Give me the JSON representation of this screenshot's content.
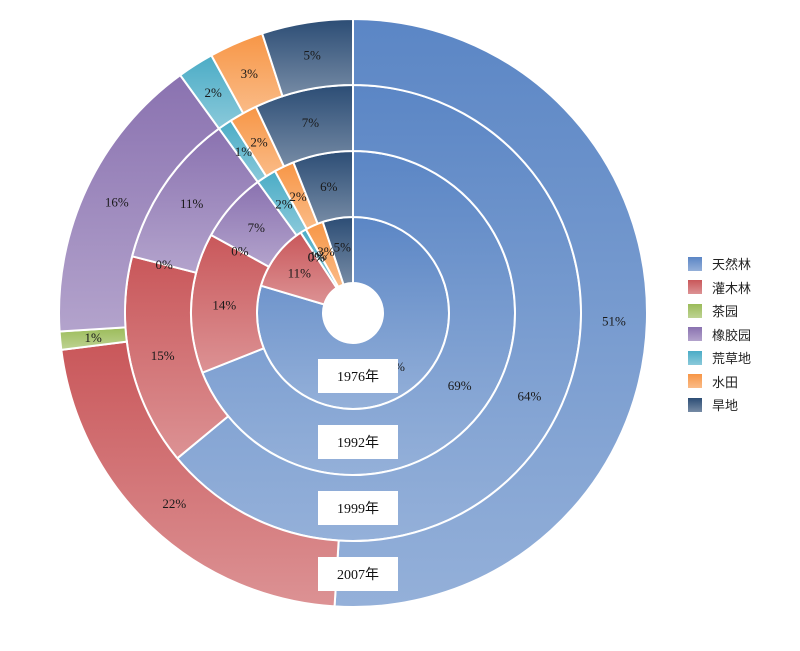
{
  "chart_data": {
    "type": "pie",
    "subtype": "multi-ring donut",
    "categories": [
      "天然林",
      "灌木林",
      "茶园",
      "橡胶园",
      "荒草地",
      "水田",
      "旱地"
    ],
    "colors": [
      "#5b86c5",
      "#c9575a",
      "#9bbb59",
      "#8a72b0",
      "#4bacc6",
      "#f79646",
      "#2c4d75"
    ],
    "series": [
      {
        "name": "1976年",
        "values": [
          78,
          11,
          0,
          0,
          1,
          3,
          5
        ],
        "labels": [
          "78%",
          "11%",
          "0%",
          "0%",
          "1%",
          "3%",
          "5%"
        ]
      },
      {
        "name": "1992年",
        "values": [
          69,
          14,
          0,
          7,
          2,
          2,
          6
        ],
        "labels": [
          "69%",
          "14%",
          "0%",
          "7%",
          "2%",
          "2%",
          "6%"
        ]
      },
      {
        "name": "1999年",
        "values": [
          64,
          15,
          0,
          11,
          1,
          2,
          7
        ],
        "labels": [
          "64%",
          "15%",
          "0%",
          "11%",
          "1%",
          "2%",
          "7%"
        ]
      },
      {
        "name": "2007年",
        "values": [
          51,
          22,
          1,
          16,
          2,
          3,
          5
        ],
        "labels": [
          "51%",
          "22%",
          "1%",
          "16%",
          "2%",
          "3%",
          "5%"
        ]
      }
    ],
    "legend_position": "right"
  }
}
